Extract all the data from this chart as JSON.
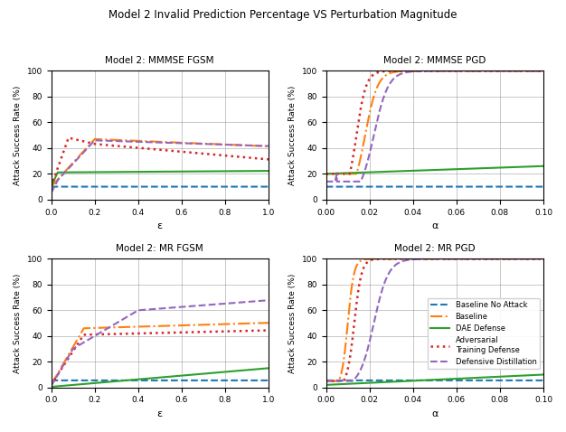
{
  "suptitle": "Model 2 Invalid Prediction Percentage VS Perturbation Magnitude",
  "subplots": [
    {
      "title": "Model 2: MMMSE FGSM",
      "xlabel": "ε",
      "type": "fgsm",
      "xmin": 0.0,
      "xmax": 1.0,
      "xticks": [
        0.0,
        0.2,
        0.4,
        0.6,
        0.8,
        1.0
      ]
    },
    {
      "title": "Model 2: MMMSE PGD",
      "xlabel": "α",
      "type": "pgd",
      "xmin": 0.0,
      "xmax": 0.1,
      "xticks": [
        0.0,
        0.02,
        0.04,
        0.06,
        0.08,
        0.1
      ]
    },
    {
      "title": "Model 2: MR FGSM",
      "xlabel": "ε",
      "type": "fgsm_mr",
      "xmin": 0.0,
      "xmax": 1.0,
      "xticks": [
        0.0,
        0.2,
        0.4,
        0.6,
        0.8,
        1.0
      ]
    },
    {
      "title": "Model 2: MR PGD",
      "xlabel": "α",
      "type": "pgd_mr",
      "xmin": 0.0,
      "xmax": 0.1,
      "xticks": [
        0.0,
        0.02,
        0.04,
        0.06,
        0.08,
        0.1
      ]
    }
  ],
  "legend_labels": [
    "Baseline No Attack",
    "Baseline",
    "DAE Defense",
    "Adversarial\nTraining Defense",
    "Defensive Distillation"
  ],
  "line_styles": [
    {
      "color": "#1f77b4",
      "linestyle": "--",
      "linewidth": 1.5
    },
    {
      "color": "#ff7f0e",
      "linestyle": "-.",
      "linewidth": 1.5
    },
    {
      "color": "#2ca02c",
      "linestyle": "-",
      "linewidth": 1.5
    },
    {
      "color": "#d62728",
      "linestyle": ":",
      "linewidth": 1.8
    },
    {
      "color": "#9467bd",
      "linestyle": "--",
      "linewidth": 1.5
    }
  ],
  "yticks": [
    0,
    20,
    40,
    60,
    80,
    100
  ],
  "ylabel": "Attack Success Rate (%)",
  "ylim": [
    0,
    100
  ]
}
